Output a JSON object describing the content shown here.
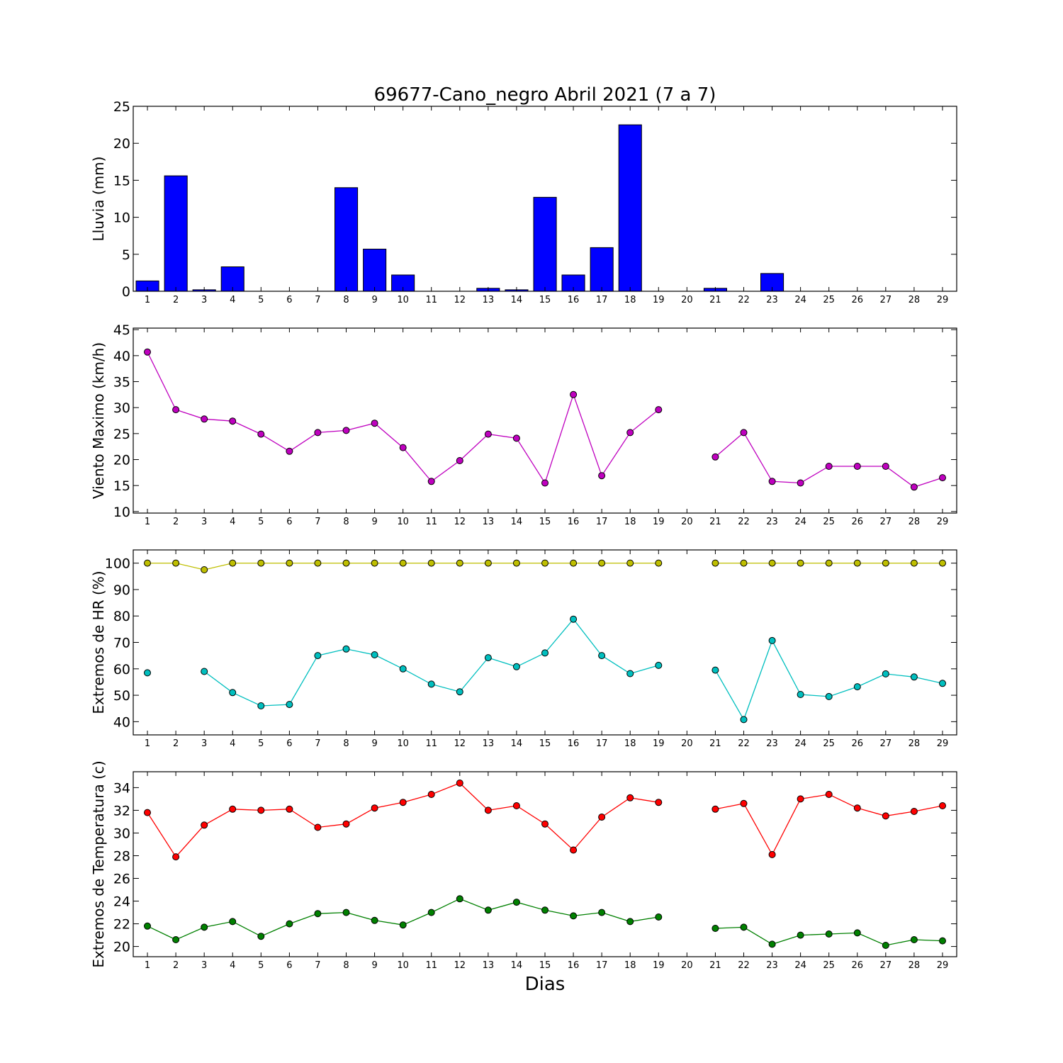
{
  "figure": {
    "title": "69677-Cano_negro Abril 2021  (7 a 7)",
    "xlabel": "Dias"
  },
  "chart_data": [
    {
      "type": "bar",
      "ylabel": "Lluvia (mm)",
      "ylim": [
        0,
        25
      ],
      "yticks": [
        0,
        5,
        10,
        15,
        20,
        25
      ],
      "xlim": [
        0.5,
        29.5
      ],
      "x": [
        1,
        2,
        3,
        4,
        5,
        6,
        7,
        8,
        9,
        10,
        11,
        12,
        13,
        14,
        15,
        16,
        17,
        18,
        19,
        20,
        21,
        22,
        23,
        24,
        25,
        26,
        27,
        28,
        29
      ],
      "series": [
        {
          "color": "#0000ff",
          "values": [
            1.4,
            15.6,
            0.2,
            3.3,
            0,
            0,
            0,
            14.0,
            5.7,
            2.2,
            0,
            0,
            0.4,
            0.2,
            12.7,
            2.2,
            5.9,
            22.5,
            0,
            null,
            0.4,
            0,
            2.4,
            0,
            0,
            0,
            0,
            0,
            0
          ]
        }
      ]
    },
    {
      "type": "line",
      "ylabel": "Viento Maximo (km/h)",
      "ylim": [
        9.7,
        45.3
      ],
      "yticks": [
        10,
        15,
        20,
        25,
        30,
        35,
        40,
        45
      ],
      "xlim": [
        0.5,
        29.5
      ],
      "x": [
        1,
        2,
        3,
        4,
        5,
        6,
        7,
        8,
        9,
        10,
        11,
        12,
        13,
        14,
        15,
        16,
        17,
        18,
        19,
        20,
        21,
        22,
        23,
        24,
        25,
        26,
        27,
        28,
        29
      ],
      "series": [
        {
          "color": "#bf00bf",
          "values": [
            40.7,
            29.6,
            27.8,
            27.4,
            24.9,
            21.6,
            25.2,
            25.6,
            27.0,
            22.3,
            15.8,
            19.8,
            24.9,
            24.1,
            15.5,
            32.5,
            16.9,
            25.2,
            29.6,
            null,
            20.5,
            25.2,
            15.8,
            15.5,
            18.7,
            18.7,
            18.7,
            14.7,
            16.5
          ]
        }
      ]
    },
    {
      "type": "line",
      "ylabel": "Extremos de HR (%)",
      "ylim": [
        35,
        105
      ],
      "yticks": [
        40,
        50,
        60,
        70,
        80,
        90,
        100
      ],
      "xlim": [
        0.5,
        29.5
      ],
      "x": [
        1,
        2,
        3,
        4,
        5,
        6,
        7,
        8,
        9,
        10,
        11,
        12,
        13,
        14,
        15,
        16,
        17,
        18,
        19,
        20,
        21,
        22,
        23,
        24,
        25,
        26,
        27,
        28,
        29
      ],
      "series": [
        {
          "color": "#bfbf00",
          "values": [
            100,
            100,
            97.5,
            100,
            100,
            100,
            100,
            100,
            100,
            100,
            100,
            100,
            100,
            100,
            100,
            100,
            100,
            100,
            100,
            null,
            100,
            100,
            100,
            100,
            100,
            100,
            100,
            100,
            100
          ]
        },
        {
          "color": "#00bfbf",
          "values": [
            58.5,
            null,
            59,
            51,
            46,
            46.5,
            65,
            67.5,
            65.3,
            60,
            54.2,
            51.3,
            64.2,
            60.8,
            66,
            78.8,
            65,
            58.2,
            61.3,
            null,
            59.5,
            40.8,
            70.7,
            50.3,
            49.5,
            53.2,
            58.1,
            56.9,
            54.5
          ]
        }
      ]
    },
    {
      "type": "line",
      "ylabel": "Extremos de Temperatura (c)",
      "ylim": [
        19.1,
        35.4
      ],
      "yticks": [
        20,
        22,
        24,
        26,
        28,
        30,
        32,
        34
      ],
      "xlim": [
        0.5,
        29.5
      ],
      "x": [
        1,
        2,
        3,
        4,
        5,
        6,
        7,
        8,
        9,
        10,
        11,
        12,
        13,
        14,
        15,
        16,
        17,
        18,
        19,
        20,
        21,
        22,
        23,
        24,
        25,
        26,
        27,
        28,
        29
      ],
      "series": [
        {
          "color": "#ff0000",
          "values": [
            31.8,
            27.9,
            30.7,
            32.1,
            32.0,
            32.1,
            30.5,
            30.8,
            32.2,
            32.7,
            33.4,
            34.4,
            32.0,
            32.4,
            30.8,
            28.5,
            31.4,
            33.1,
            32.7,
            null,
            32.1,
            32.6,
            28.1,
            33.0,
            33.4,
            32.2,
            31.5,
            31.9,
            32.4
          ]
        },
        {
          "color": "#008000",
          "values": [
            21.8,
            20.6,
            21.7,
            22.2,
            20.9,
            22.0,
            22.9,
            23.0,
            22.3,
            21.9,
            23.0,
            24.2,
            23.2,
            23.9,
            23.2,
            22.7,
            23.0,
            22.2,
            22.6,
            null,
            21.6,
            21.7,
            20.2,
            21.0,
            21.1,
            21.2,
            20.1,
            20.6,
            20.5
          ]
        }
      ]
    }
  ]
}
